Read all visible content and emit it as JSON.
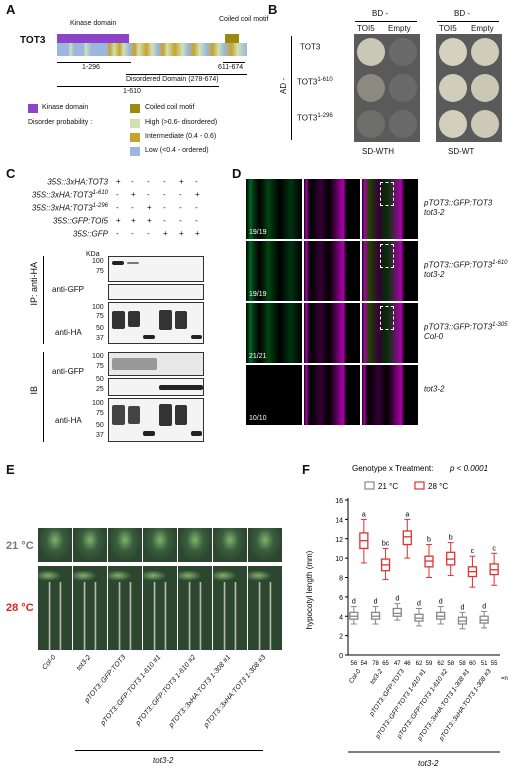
{
  "panels": {
    "A": "A",
    "B": "B",
    "C": "C",
    "D": "D",
    "E": "E",
    "F": "F"
  },
  "panelA": {
    "protein": "TOT3",
    "kinase_label": "Kinase domain",
    "coil_label": "Coiled coil motif",
    "range1": "1-296",
    "range2": "611-674",
    "disordered": "Disordered Domain (278-674)",
    "range3": "1-610",
    "legend_kinase": "Kinase domain",
    "legend_coil": "Coiled coil motif",
    "legend_disorder_title": "Disorder probability :",
    "legend_high": "High (>0.6- disordered)",
    "legend_inter": "Intermediate (0.4 - 0.6)",
    "legend_low": "Low (<0.4 - ordered)",
    "colors": {
      "kinase": "#8e44c9",
      "coil": "#9a8a10",
      "high": "#cfe3b2",
      "inter": "#c9a22e",
      "low": "#9bb7dd"
    }
  },
  "panelB": {
    "bd": "BD -",
    "col1": "TOI5",
    "col2": "Empty",
    "ad": "AD -",
    "rows": [
      "TOT3",
      "TOT3",
      "TOT3"
    ],
    "row_sups": [
      "",
      "1-610",
      "1-296"
    ],
    "media1": "SD-WTH",
    "media2": "SD-WT"
  },
  "panelC": {
    "constructs": [
      "35S::3xHA:TOT3",
      "35S::3xHA:TOT3",
      "35S::3xHA:TOT3",
      "35S::GFP:TOI5",
      "35S::GFP"
    ],
    "construct_sups": [
      "",
      "1-610",
      "1-296",
      "",
      ""
    ],
    "signs": [
      [
        "+",
        "-",
        "-",
        "-",
        "+",
        "-"
      ],
      [
        "-",
        "+",
        "-",
        "-",
        "-",
        "+"
      ],
      [
        "-",
        "-",
        "+",
        "-",
        "-",
        "-"
      ],
      [
        "+",
        "+",
        "+",
        "-",
        "-",
        "-"
      ],
      [
        "-",
        "-",
        "-",
        "+",
        "+",
        "+"
      ]
    ],
    "kda": "KDa",
    "markers_top": [
      "100",
      "75",
      "50",
      "37"
    ],
    "markers_ha": [
      "100",
      "75",
      "50",
      "37"
    ],
    "markers_ib": [
      "100",
      "75",
      "50",
      "25"
    ],
    "markers_ibha": [
      "100",
      "75",
      "50",
      "37"
    ],
    "ip": "IP: anti-HA",
    "ib": "IB",
    "anti_gfp": "anti-GFP",
    "anti_ha": "anti-HA"
  },
  "panelD": {
    "counts": [
      "19/19",
      "19/19",
      "21/21",
      "10/10"
    ],
    "labels": [
      {
        "line1": "pTOT3::GFP:TOT3",
        "sup": "",
        "line2": "tot3-2"
      },
      {
        "line1": "pTOT3::GFP:TOT3",
        "sup": "1-610",
        "line2": "tot3-2"
      },
      {
        "line1": "pTOT3::GFP:TOT3",
        "sup": "1-305",
        "line2": "Col-0"
      },
      {
        "line1": "tot3-2",
        "sup": "",
        "line2": ""
      }
    ]
  },
  "panelE": {
    "temp21": "21 °C",
    "temp28": "28 °C",
    "genotypes": [
      "Col-0",
      "tot3-2",
      "pTOT3::GFP:TOT3",
      "pTOT3::GFP:TOT3 1-610 #1",
      "pTOT3::GFP:TOT3 1-610 #2",
      "pTOT3::3xHA:TOT3 1-308 #1",
      "pTOT3::3xHA:TOT3 1-308 #3"
    ],
    "background": "tot3-2"
  },
  "panelF": {
    "title": "Genotype x Treatment:",
    "pvalue": "p < 0.0001",
    "legend21": "21 °C",
    "legend28": "28 °C",
    "ylabel": "hypocotyl length (mm)",
    "background": "tot3-2",
    "n_suffix": "=n"
  },
  "chart_data": {
    "type": "box",
    "title": "Genotype x Treatment: p < 0.0001",
    "ylabel": "hypocotyl length (mm)",
    "ylim": [
      0,
      16
    ],
    "yticks": [
      0,
      2,
      4,
      6,
      8,
      10,
      12,
      14,
      16
    ],
    "categories": [
      "Col-0",
      "tot3-2",
      "pTOT3::GFP:TOT3",
      "pTOT3::GFP:TOT3 1-610 #1",
      "pTOT3::GFP:TOT3 1-610 #2",
      "pTOT3::3xHA:TOT3 1-308 #1",
      "pTOT3::3xHA:TOT3 1-308 #3"
    ],
    "series": [
      {
        "name": "21 °C",
        "color": "#888888",
        "boxes": [
          [
            3.2,
            3.7,
            4.0,
            4.4,
            5.0
          ],
          [
            3.2,
            3.7,
            4.0,
            4.4,
            5.0
          ],
          [
            3.6,
            4.0,
            4.3,
            4.8,
            5.3
          ],
          [
            3.0,
            3.5,
            3.8,
            4.2,
            4.8
          ],
          [
            3.2,
            3.7,
            4.0,
            4.4,
            5.0
          ],
          [
            2.7,
            3.2,
            3.5,
            3.9,
            4.4
          ],
          [
            2.8,
            3.3,
            3.6,
            4.0,
            4.5
          ]
        ],
        "letters": [
          "d",
          "d",
          "d",
          "d",
          "d",
          "d",
          "d"
        ],
        "n": [
          56,
          78,
          47,
          62,
          62,
          58,
          51
        ]
      },
      {
        "name": "28 °C",
        "color": "#e03030",
        "boxes": [
          [
            9.5,
            11.0,
            11.8,
            12.6,
            14.0
          ],
          [
            7.8,
            8.7,
            9.3,
            9.9,
            11.0
          ],
          [
            10.0,
            11.4,
            12.2,
            12.8,
            14.0
          ],
          [
            8.0,
            9.1,
            9.7,
            10.2,
            11.4
          ],
          [
            8.2,
            9.3,
            9.9,
            10.6,
            11.6
          ],
          [
            7.0,
            8.1,
            8.6,
            9.1,
            10.2
          ],
          [
            7.2,
            8.3,
            8.8,
            9.4,
            10.5
          ]
        ],
        "letters": [
          "a",
          "bc",
          "a",
          "b",
          "b",
          "c",
          "c"
        ],
        "n": [
          54,
          65,
          46,
          59,
          58,
          60,
          55
        ]
      }
    ]
  }
}
